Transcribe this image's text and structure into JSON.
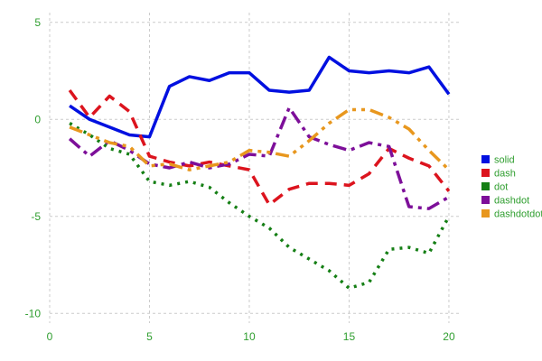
{
  "chart_data": {
    "type": "line",
    "title": "",
    "xlabel": "",
    "ylabel": "",
    "xlim": [
      0,
      20.5
    ],
    "ylim": [
      -10.5,
      5.5
    ],
    "xticks": [
      0,
      5,
      10,
      15,
      20
    ],
    "yticks": [
      -10,
      -5,
      0,
      5
    ],
    "grid": true,
    "grid_style": "dashed",
    "legend_position": "right-middle",
    "tick_label_color": "#2f9e2f",
    "grid_color": "#cccccc",
    "background": "#ffffff",
    "x": [
      1,
      2,
      3,
      4,
      5,
      6,
      7,
      8,
      9,
      10,
      11,
      12,
      13,
      14,
      15,
      16,
      17,
      18,
      19,
      20
    ],
    "series": [
      {
        "name": "solid",
        "style": "solid",
        "color": "#0010e0",
        "values": [
          0.7,
          0.0,
          -0.4,
          -0.8,
          -0.9,
          1.7,
          2.2,
          2.0,
          2.4,
          2.4,
          1.5,
          1.4,
          1.5,
          3.2,
          2.5,
          2.4,
          2.5,
          2.4,
          2.7,
          1.3
        ]
      },
      {
        "name": "dash",
        "style": "dash",
        "color": "#dc141e",
        "values": [
          1.5,
          0.1,
          1.2,
          0.4,
          -1.9,
          -2.2,
          -2.4,
          -2.2,
          -2.4,
          -2.6,
          -4.4,
          -3.6,
          -3.3,
          -3.3,
          -3.4,
          -2.8,
          -1.5,
          -2.0,
          -2.4,
          -3.7
        ]
      },
      {
        "name": "dot",
        "style": "dot",
        "color": "#157f15",
        "values": [
          -0.2,
          -0.8,
          -1.5,
          -1.8,
          -3.2,
          -3.4,
          -3.2,
          -3.5,
          -4.3,
          -5.0,
          -5.6,
          -6.6,
          -7.2,
          -7.8,
          -8.7,
          -8.4,
          -6.7,
          -6.6,
          -6.9,
          -5.0
        ]
      },
      {
        "name": "dashdot",
        "style": "dashdot",
        "color": "#7d0f99",
        "values": [
          -1.0,
          -1.9,
          -1.1,
          -1.6,
          -2.3,
          -2.5,
          -2.2,
          -2.5,
          -2.3,
          -1.8,
          -1.9,
          0.6,
          -0.9,
          -1.3,
          -1.6,
          -1.2,
          -1.4,
          -4.5,
          -4.6,
          -4.0
        ]
      },
      {
        "name": "dashdotdot",
        "style": "dashdotdot",
        "color": "#e8971e",
        "values": [
          -0.4,
          -0.8,
          -1.2,
          -1.4,
          -2.4,
          -2.3,
          -2.6,
          -2.4,
          -2.2,
          -1.6,
          -1.7,
          -1.9,
          -1.1,
          -0.2,
          0.5,
          0.5,
          0.1,
          -0.5,
          -1.6,
          -2.6
        ]
      }
    ]
  }
}
